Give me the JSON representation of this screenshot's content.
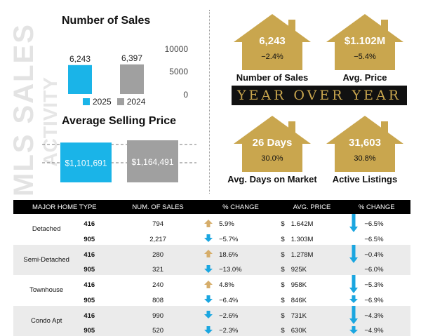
{
  "watermark": [
    "MLS SALES",
    "ACTIVITY"
  ],
  "colors": {
    "y2025": "#1ab4e8",
    "y2024": "#a0a0a0",
    "gold": "#c9a64e",
    "up_arrow": "#d6ad6a",
    "down_arrow": "#1aa6e0"
  },
  "chart_data": [
    {
      "type": "bar",
      "title": "Number of Sales",
      "categories": [
        "2025",
        "2024"
      ],
      "values": [
        6243,
        6397
      ],
      "value_labels": [
        "6,243",
        "6,397"
      ],
      "yticks": [
        "10000",
        "5000",
        "0"
      ],
      "ylim": [
        0,
        10000
      ],
      "legend": [
        "2025",
        "2024"
      ],
      "legend_position": "bottom"
    },
    {
      "type": "bar",
      "title": "Average Selling Price",
      "categories": [
        "2025",
        "2024"
      ],
      "values": [
        1101691,
        1164491
      ],
      "value_labels": [
        "$1,101,691",
        "$1,164,491"
      ]
    }
  ],
  "yoy_label": "YEAR OVER YEAR",
  "houses": [
    {
      "value": "6,243",
      "change": "−2.4%",
      "label": "Number of Sales"
    },
    {
      "value": "$1.102M",
      "change": "−5.4%",
      "label": "Avg. Price"
    },
    {
      "value": "26 Days",
      "change": "30.0%",
      "label": "Avg. Days on Market"
    },
    {
      "value": "31,603",
      "change": "30.8%",
      "label": "Active Listings"
    }
  ],
  "table": {
    "headers": [
      "MAJOR HOME TYPE",
      "NUM. OF SALES",
      "% CHANGE",
      "AVG. PRICE",
      "% CHANGE"
    ],
    "rows": [
      {
        "type": "Detached",
        "area": "416",
        "sales": "794",
        "sales_dir": "up",
        "sales_chg": "5.9%",
        "price": "1.642M",
        "price_dir": "down",
        "price_chg": "−6.5%"
      },
      {
        "type": "",
        "area": "905",
        "sales": "2,217",
        "sales_dir": "down",
        "sales_chg": "−5.7%",
        "price": "1.303M",
        "price_dir": "",
        "price_chg": "−6.5%"
      },
      {
        "type": "Semi-Detached",
        "area": "416",
        "sales": "280",
        "sales_dir": "up",
        "sales_chg": "18.6%",
        "price": "1.278M",
        "price_dir": "down",
        "price_chg": "−0.4%"
      },
      {
        "type": "",
        "area": "905",
        "sales": "321",
        "sales_dir": "down",
        "sales_chg": "−13.0%",
        "price": "925K",
        "price_dir": "",
        "price_chg": "−6.0%"
      },
      {
        "type": "Townhouse",
        "area": "416",
        "sales": "240",
        "sales_dir": "up",
        "sales_chg": "4.8%",
        "price": "958K",
        "price_dir": "down",
        "price_chg": "−5.3%"
      },
      {
        "type": "",
        "area": "905",
        "sales": "808",
        "sales_dir": "down",
        "sales_chg": "−6.4%",
        "price": "846K",
        "price_dir": "down",
        "price_chg": "−6.9%"
      },
      {
        "type": "Condo Apt",
        "area": "416",
        "sales": "990",
        "sales_dir": "down",
        "sales_chg": "−2.6%",
        "price": "731K",
        "price_dir": "down",
        "price_chg": "−4.3%"
      },
      {
        "type": "",
        "area": "905",
        "sales": "520",
        "sales_dir": "down",
        "sales_chg": "−2.3%",
        "price": "630K",
        "price_dir": "down",
        "price_chg": "−4.9%"
      }
    ]
  }
}
